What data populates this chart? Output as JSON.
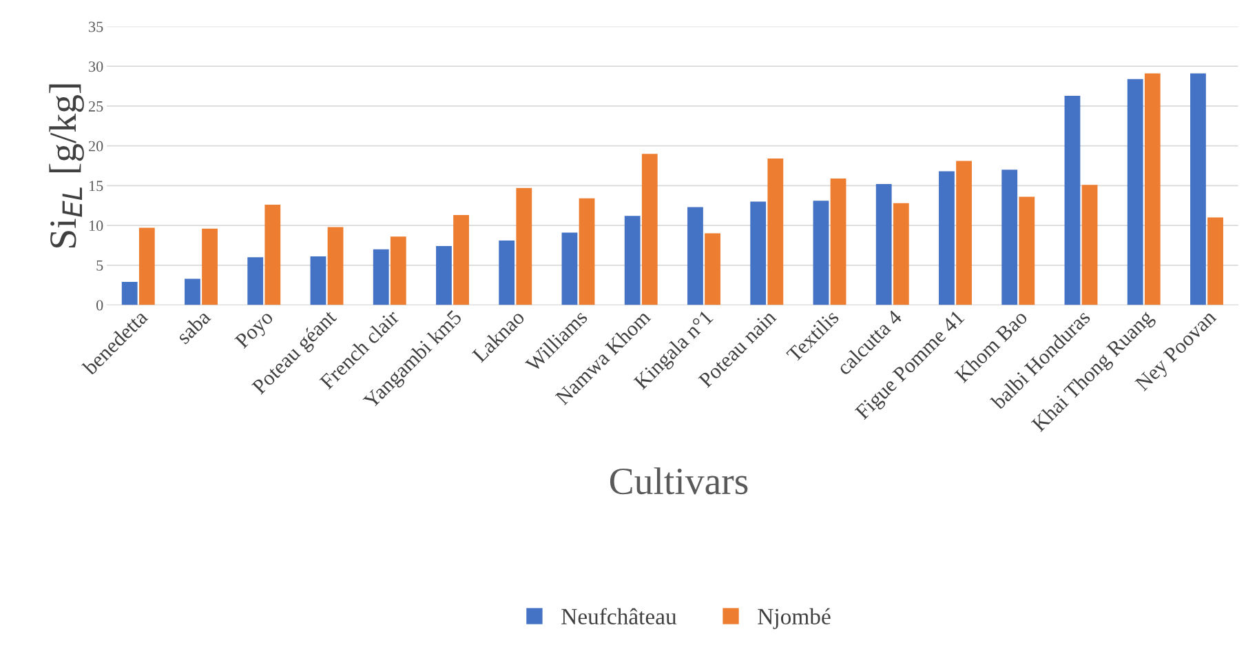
{
  "chart_data": {
    "type": "bar",
    "xlabel": "Cultivars",
    "ylabel": "Si$_{EL}$ [g/kg]",
    "categories": [
      "benedetta",
      "saba",
      "Poyo",
      "Poteau géant",
      "French clair",
      "Yangambi km5",
      "Laknao",
      "Williams",
      "Namwa Khom",
      "Kingala n°1",
      "Poteau nain",
      "Textilis",
      "calcutta 4",
      "Figue Pomme 41",
      "Khom Bao",
      "balbi Honduras",
      "Khai Thong Ruang",
      "Ney Poovan"
    ],
    "series": [
      {
        "name": "Neufchâteau",
        "color": "#4472c4",
        "values": [
          2.9,
          3.3,
          6.0,
          6.1,
          7.0,
          7.4,
          8.1,
          9.1,
          11.2,
          12.3,
          13.0,
          13.1,
          15.2,
          16.8,
          17.0,
          26.3,
          28.4,
          29.1
        ]
      },
      {
        "name": "Njombé",
        "color": "#ed7d31",
        "values": [
          9.7,
          9.6,
          12.6,
          9.8,
          8.6,
          11.3,
          14.7,
          13.4,
          19.0,
          9.0,
          18.4,
          15.9,
          12.8,
          18.1,
          13.6,
          15.1,
          29.1,
          11.0
        ]
      }
    ],
    "ylim": [
      0,
      35
    ],
    "yticks": [
      0,
      5,
      10,
      15,
      20,
      25,
      30,
      35
    ],
    "grid": "y",
    "legend": "bottom"
  }
}
